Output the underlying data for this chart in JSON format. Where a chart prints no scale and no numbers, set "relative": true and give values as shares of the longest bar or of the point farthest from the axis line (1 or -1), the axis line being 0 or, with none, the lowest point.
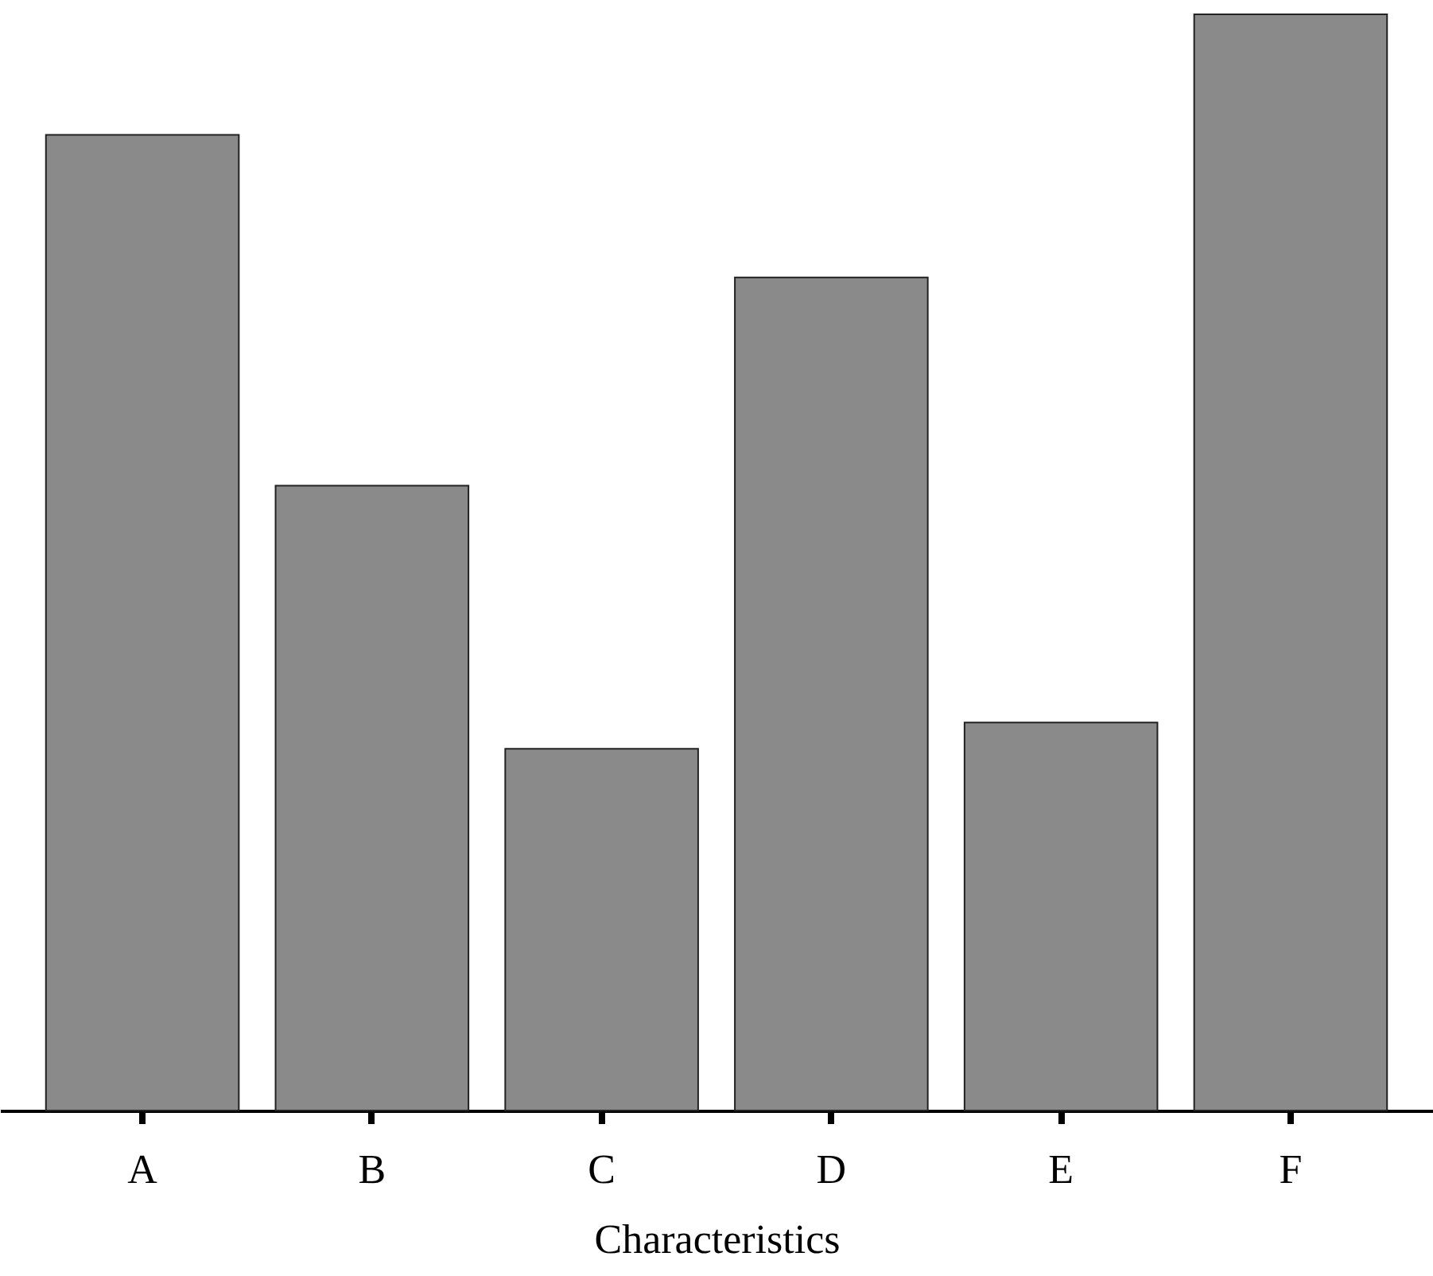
{
  "chart_data": {
    "type": "bar",
    "xlabel": "Characteristics",
    "relative": true,
    "categories": [
      "A",
      "B",
      "C",
      "D",
      "E",
      "F"
    ],
    "values": [
      0.89,
      0.57,
      0.33,
      0.76,
      0.354,
      1
    ],
    "color": "#8a8a8a"
  }
}
